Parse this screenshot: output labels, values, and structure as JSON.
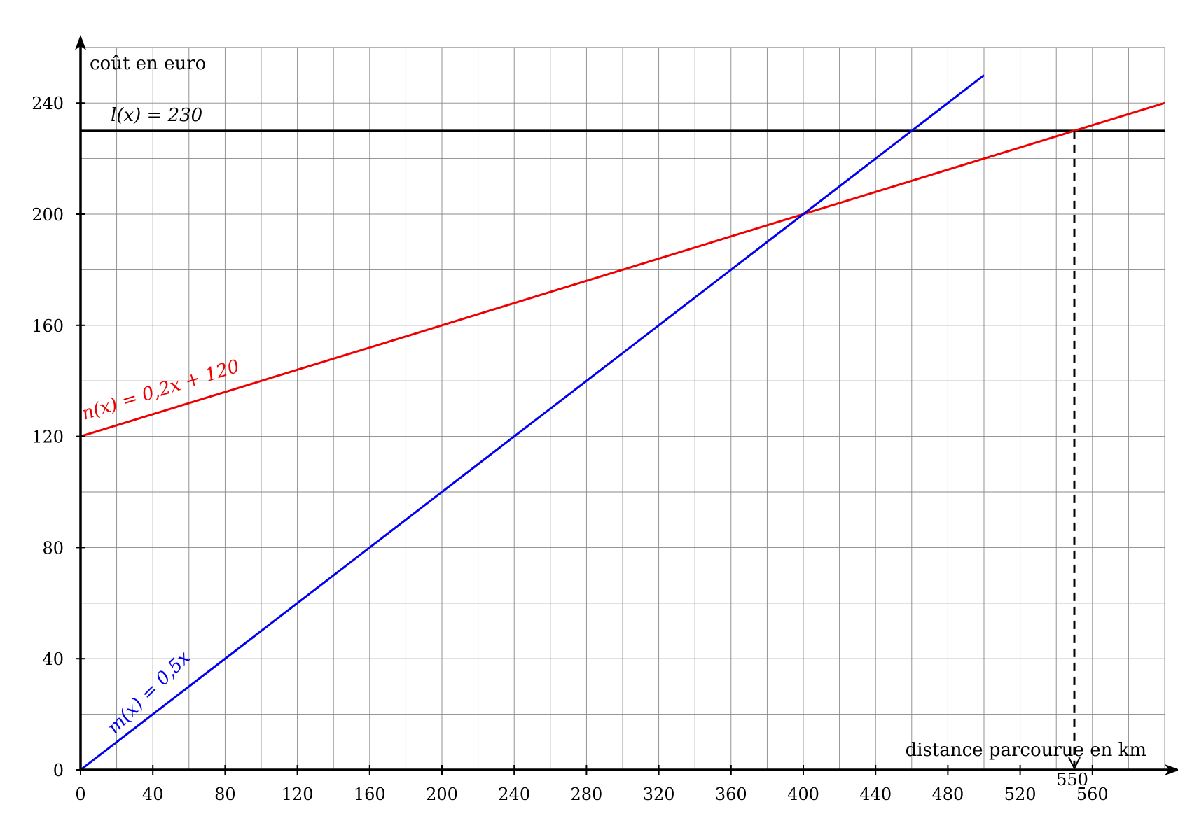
{
  "chart_data": {
    "type": "line",
    "xlabel": "distance parcourue en km",
    "ylabel": "coût en euro",
    "xlim": [
      0,
      600
    ],
    "ylim": [
      0,
      260
    ],
    "grid": true,
    "x_ticks": [
      "0",
      "40",
      "80",
      "120",
      "160",
      "200",
      "240",
      "280",
      "320",
      "360",
      "400",
      "440",
      "480",
      "520",
      "560"
    ],
    "y_ticks": [
      "0",
      "40",
      "80",
      "120",
      "160",
      "200",
      "240"
    ],
    "series": [
      {
        "name": "m(x) = 0,5x",
        "color": "#0000ee",
        "x": [
          0,
          500
        ],
        "y": [
          0,
          250
        ]
      },
      {
        "name": "n(x) = 0,2x + 120",
        "color": "#ee0000",
        "x": [
          0,
          600
        ],
        "y": [
          120,
          240
        ]
      },
      {
        "name": "l(x) = 230",
        "color": "#000000",
        "x": [
          0,
          600
        ],
        "y": [
          230,
          230
        ]
      }
    ],
    "annotations": [
      {
        "text": "550",
        "x": 550,
        "y": 230,
        "style": "dashed-arrow-to-x-axis"
      }
    ]
  }
}
